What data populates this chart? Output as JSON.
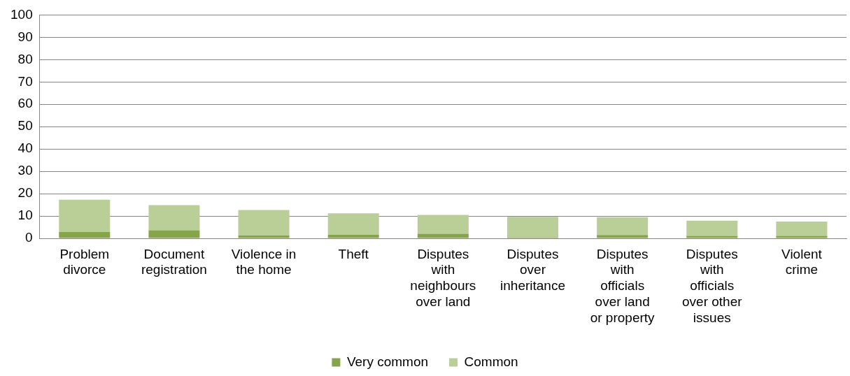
{
  "chart_data": {
    "type": "bar",
    "stacked": true,
    "categories": [
      "Problem divorce",
      "Document registration",
      "Violence in the home",
      "Theft",
      "Disputes with neighbours over land",
      "Disputes over inheritance",
      "Disputes with officials over land or property",
      "Disputes with officials over other issues",
      "Violent crime"
    ],
    "series": [
      {
        "name": "Very common",
        "color": "#86a44a",
        "values": [
          2.9,
          3.6,
          1.3,
          1.6,
          2.0,
          0.5,
          1.5,
          1.1,
          1.1
        ]
      },
      {
        "name": "Common",
        "color": "#b9cf97",
        "values": [
          14.4,
          11.3,
          11.4,
          9.6,
          8.5,
          9.1,
          8.0,
          6.8,
          6.4
        ]
      }
    ],
    "ylim": [
      0,
      100
    ],
    "yticks": [
      0,
      10,
      20,
      30,
      40,
      50,
      60,
      70,
      80,
      90,
      100
    ],
    "grid": "y",
    "legend": "bottom"
  }
}
